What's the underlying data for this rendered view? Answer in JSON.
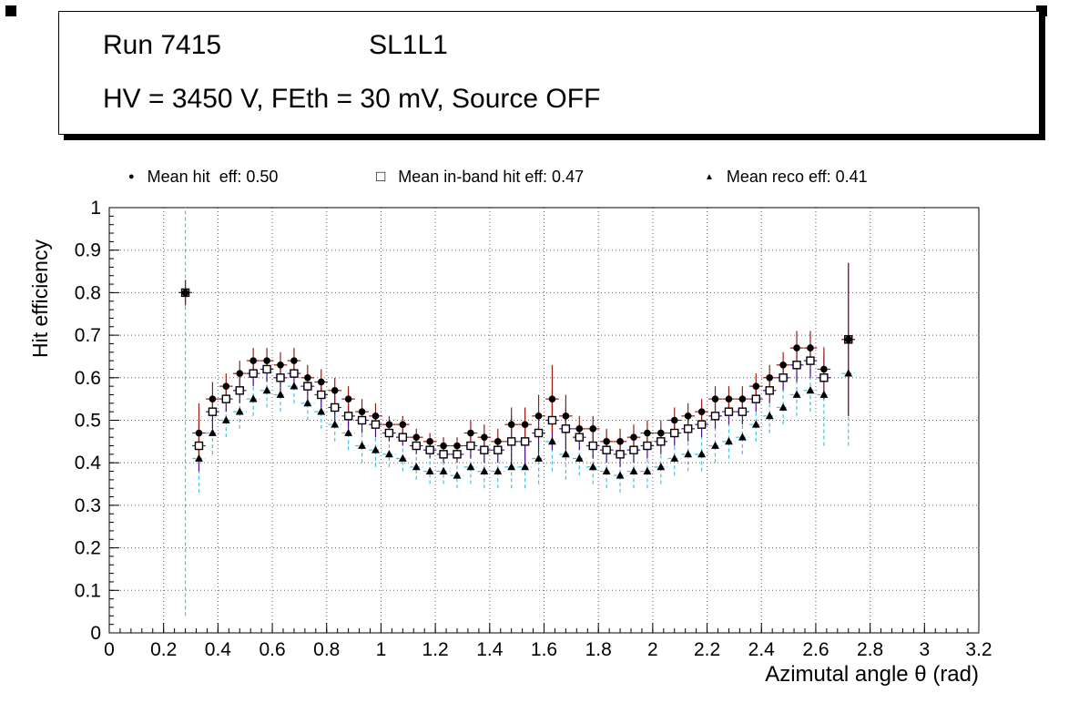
{
  "canvas": {
    "background": "#ffffff"
  },
  "header": {
    "run_label": "Run 7415",
    "chamber_label": "SL1L1",
    "conditions_label": "HV = 3450 V, FEth = 30 mV, Source OFF"
  },
  "chart_data": {
    "type": "scatter",
    "title": "",
    "xlabel": "Azimutal angle θ (rad)",
    "ylabel": "Hit efficiency",
    "xlim": [
      0,
      3.2
    ],
    "ylim": [
      0,
      1
    ],
    "xtick_labels": [
      "0",
      "0.2",
      "0.4",
      "0.6",
      "0.8",
      "1",
      "1.2",
      "1.4",
      "1.6",
      "1.8",
      "2",
      "2.2",
      "2.4",
      "2.6",
      "2.8",
      "3",
      "3.2"
    ],
    "ytick_labels": [
      "0",
      "0.1",
      "0.2",
      "0.3",
      "0.4",
      "0.5",
      "0.6",
      "0.7",
      "0.8",
      "0.9",
      "1"
    ],
    "grid": "dotted",
    "legend_position": "top",
    "x_half_width": 0.0245,
    "x": [
      0.28,
      0.33,
      0.38,
      0.43,
      0.48,
      0.53,
      0.58,
      0.63,
      0.68,
      0.73,
      0.78,
      0.83,
      0.88,
      0.93,
      0.98,
      1.03,
      1.08,
      1.13,
      1.18,
      1.23,
      1.28,
      1.33,
      1.38,
      1.43,
      1.48,
      1.53,
      1.58,
      1.63,
      1.68,
      1.73,
      1.78,
      1.83,
      1.88,
      1.93,
      1.98,
      2.03,
      2.08,
      2.13,
      2.18,
      2.23,
      2.28,
      2.33,
      2.38,
      2.43,
      2.48,
      2.53,
      2.58,
      2.63,
      2.72
    ],
    "series": [
      {
        "id": "hit-eff",
        "label": "Mean hit  eff: 0.50",
        "mean": 0.5,
        "marker": "filled-circle",
        "marker_color": "#000000",
        "error_color": "#9b1b10",
        "dash": null,
        "y": [
          0.8,
          0.47,
          0.55,
          0.58,
          0.61,
          0.64,
          0.64,
          0.63,
          0.64,
          0.6,
          0.59,
          0.57,
          0.55,
          0.52,
          0.51,
          0.49,
          0.49,
          0.46,
          0.45,
          0.44,
          0.44,
          0.47,
          0.46,
          0.45,
          0.49,
          0.49,
          0.51,
          0.55,
          0.51,
          0.48,
          0.48,
          0.45,
          0.45,
          0.46,
          0.47,
          0.47,
          0.5,
          0.51,
          0.52,
          0.55,
          0.55,
          0.55,
          0.58,
          0.6,
          0.63,
          0.67,
          0.67,
          0.62,
          0.69
        ],
        "yerr": [
          0.03,
          0.07,
          0.04,
          0.03,
          0.03,
          0.03,
          0.03,
          0.03,
          0.03,
          0.03,
          0.03,
          0.03,
          0.03,
          0.03,
          0.03,
          0.02,
          0.02,
          0.02,
          0.02,
          0.02,
          0.02,
          0.03,
          0.03,
          0.03,
          0.04,
          0.04,
          0.05,
          0.08,
          0.05,
          0.03,
          0.03,
          0.03,
          0.03,
          0.03,
          0.03,
          0.03,
          0.03,
          0.03,
          0.03,
          0.03,
          0.03,
          0.03,
          0.03,
          0.03,
          0.03,
          0.04,
          0.04,
          0.05,
          0.18
        ]
      },
      {
        "id": "inband-hit-eff",
        "label": "Mean in-band hit eff: 0.47",
        "mean": 0.47,
        "marker": "open-square",
        "marker_color": "#000000",
        "error_color": "#4a0d8f",
        "dash": null,
        "y": [
          0.8,
          0.44,
          0.52,
          0.55,
          0.57,
          0.61,
          0.62,
          0.6,
          0.61,
          0.58,
          0.56,
          0.53,
          0.51,
          0.5,
          0.49,
          0.47,
          0.46,
          0.44,
          0.43,
          0.42,
          0.42,
          0.44,
          0.43,
          0.43,
          0.45,
          0.45,
          0.47,
          0.5,
          0.48,
          0.46,
          0.44,
          0.43,
          0.42,
          0.43,
          0.44,
          0.45,
          0.47,
          0.48,
          0.49,
          0.51,
          0.52,
          0.52,
          0.55,
          0.57,
          0.6,
          0.63,
          0.64,
          0.6,
          0.69
        ],
        "yerr": [
          0.03,
          0.06,
          0.04,
          0.03,
          0.03,
          0.03,
          0.03,
          0.03,
          0.03,
          0.03,
          0.03,
          0.03,
          0.03,
          0.03,
          0.03,
          0.02,
          0.02,
          0.02,
          0.02,
          0.02,
          0.02,
          0.03,
          0.03,
          0.03,
          0.06,
          0.06,
          0.05,
          0.07,
          0.05,
          0.03,
          0.03,
          0.03,
          0.03,
          0.03,
          0.03,
          0.03,
          0.03,
          0.03,
          0.03,
          0.03,
          0.03,
          0.03,
          0.03,
          0.03,
          0.03,
          0.04,
          0.04,
          0.05,
          0.18
        ]
      },
      {
        "id": "reco-eff",
        "label": "Mean reco eff: 0.41",
        "mean": 0.41,
        "marker": "filled-triangle",
        "marker_color": "#000000",
        "error_color": "#3fc4e8",
        "dash": "4 3",
        "y": [
          0.8,
          0.41,
          0.47,
          0.5,
          0.52,
          0.55,
          0.57,
          0.56,
          0.58,
          0.54,
          0.52,
          0.49,
          0.47,
          0.44,
          0.43,
          0.42,
          0.41,
          0.39,
          0.38,
          0.38,
          0.37,
          0.39,
          0.38,
          0.38,
          0.39,
          0.39,
          0.41,
          0.45,
          0.42,
          0.41,
          0.39,
          0.38,
          0.37,
          0.38,
          0.38,
          0.39,
          0.41,
          0.42,
          0.42,
          0.44,
          0.45,
          0.46,
          0.49,
          0.51,
          0.53,
          0.56,
          0.57,
          0.56,
          0.61
        ],
        "yerr": [
          0.76,
          0.08,
          0.05,
          0.04,
          0.04,
          0.04,
          0.04,
          0.04,
          0.04,
          0.04,
          0.04,
          0.04,
          0.04,
          0.04,
          0.04,
          0.03,
          0.03,
          0.03,
          0.03,
          0.03,
          0.03,
          0.04,
          0.04,
          0.04,
          0.05,
          0.05,
          0.06,
          0.07,
          0.06,
          0.04,
          0.04,
          0.04,
          0.04,
          0.04,
          0.04,
          0.04,
          0.04,
          0.04,
          0.04,
          0.04,
          0.04,
          0.04,
          0.04,
          0.04,
          0.04,
          0.05,
          0.05,
          0.12,
          0.17
        ]
      }
    ]
  }
}
